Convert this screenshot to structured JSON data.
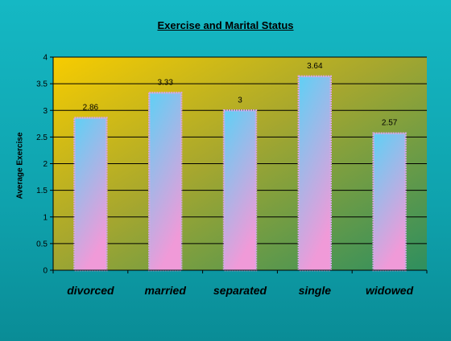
{
  "chart_data": {
    "type": "bar",
    "title": "Exercise and Marital Status",
    "xlabel": "",
    "ylabel": "Average Exercise",
    "categories": [
      "divorced",
      "married",
      "separated",
      "single",
      "widowed"
    ],
    "values": [
      2.86,
      3.33,
      3,
      3.64,
      2.57
    ],
    "value_labels": [
      "2.86",
      "3.33",
      "3",
      "3.64",
      "2.57"
    ],
    "ylim": [
      0,
      4
    ],
    "yticks": [
      0,
      0.5,
      1,
      1.5,
      2,
      2.5,
      3,
      3.5,
      4
    ],
    "ytick_labels": [
      "0",
      "0.5",
      "1",
      "1.5",
      "2",
      "2.5",
      "3",
      "3.5",
      "4"
    ],
    "grid": true,
    "legend": "none",
    "colors": {
      "plot_gradient_start": "#f7cc00",
      "plot_gradient_end": "#2e8f5f",
      "bar_top": "#5fd0f5",
      "bar_bottom": "#f09ad8",
      "bar_border": "#d8a8e6"
    }
  }
}
